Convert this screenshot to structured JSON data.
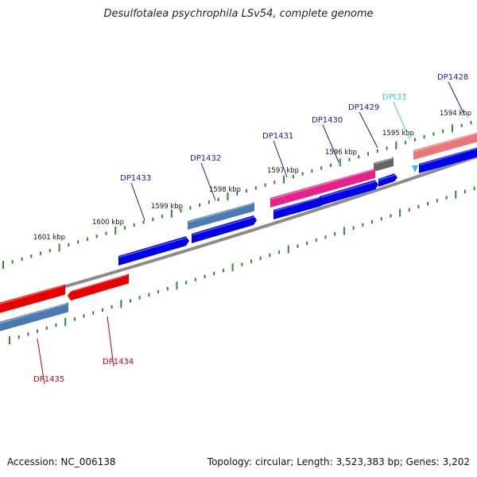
{
  "title": "Desulfotalea psychrophila LSv54, complete genome",
  "footer": {
    "accession_label": "Accession:",
    "accession": "NC_006138",
    "topology_label": "Topology:",
    "topology": "circular;",
    "length_label": "Length:",
    "length": "3,523,383 bp;",
    "genes_label": "Genes:",
    "genes": "3,202"
  },
  "colors": {
    "backbone": "#8c8c8c",
    "tick": "#2f8a2f",
    "forward_gene_label": "#1a1aa8",
    "reverse_gene_label": "#cc0000",
    "rna_label": "#40c8e0"
  },
  "scale_labels": [
    "1601 kbp",
    "1600 kbp",
    "1599 kbp",
    "1598 kbp",
    "1597 kbp",
    "1596 kbp",
    "1595 kbp",
    "1594 kbp"
  ],
  "genes": [
    {
      "label": "DP1428",
      "label_color": "#1a1aa8",
      "colors": [
        "#0000e8"
      ],
      "icon": "arrow"
    },
    {
      "label": "DPt33",
      "label_color": "#40c8e0",
      "colors": [
        "#30c0e8"
      ],
      "icon": "triangle"
    },
    {
      "label": "DP1429",
      "label_color": "#1a1aa8",
      "colors": [
        "#0000e8",
        "#666666"
      ],
      "icon": "arrow"
    },
    {
      "label": "DP1430",
      "label_color": "#1a1aa8",
      "colors": [
        "#0000e8"
      ],
      "icon": "arrow"
    },
    {
      "label": "DP1431",
      "label_color": "#1a1aa8",
      "colors": [
        "#0000e8",
        "#e8208c"
      ],
      "icon": "arrow"
    },
    {
      "label": "DP1432",
      "label_color": "#1a1aa8",
      "colors": [
        "#0000e8",
        "#4a7ab0"
      ],
      "icon": "arrow"
    },
    {
      "label": "DP1433",
      "label_color": "#1a1aa8",
      "colors": [
        "#0000e8"
      ],
      "icon": "arrow"
    },
    {
      "label": "DP1434",
      "label_color": "#cc0000",
      "colors": [
        "#e80000"
      ],
      "icon": "arrow"
    },
    {
      "label": "DP1435",
      "label_color": "#cc0000",
      "colors": [
        "#e80000",
        "#4a7ab0"
      ],
      "icon": "arrow"
    }
  ]
}
